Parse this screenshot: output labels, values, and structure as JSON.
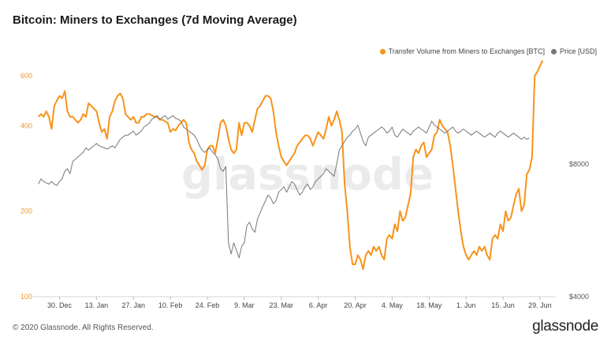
{
  "chart_data": {
    "type": "line",
    "title": "Bitcoin: Miners to Exchanges (7d Moving Average)",
    "watermark": "glassnode",
    "legend": [
      "Transfer Volume from Miners to Exchanges [BTC]",
      "Price [USD]"
    ],
    "x_tick_labels": [
      "30. Dec",
      "13. Jan",
      "27. Jan",
      "10. Feb",
      "24. Feb",
      "9. Mar",
      "23. Mar",
      "6. Apr",
      "20. Apr",
      "4. May",
      "18. May",
      "1. Jun",
      "15. Jun",
      "29. Jun"
    ],
    "x_range_days": [
      -10,
      188
    ],
    "x_tick_offsets_days": [
      0,
      14,
      28,
      42,
      56,
      70,
      84,
      98,
      112,
      126,
      140,
      154,
      168,
      182
    ],
    "left_axis": {
      "scale": "log",
      "range": [
        100,
        700
      ],
      "ticks": [
        100,
        200,
        400,
        600
      ],
      "tick_labels": [
        "100",
        "200",
        "400",
        "600"
      ]
    },
    "right_axis": {
      "scale": "log",
      "range": [
        4000,
        14000
      ],
      "ticks": [
        4000,
        8000
      ],
      "tick_labels": [
        "$4000",
        "$8000"
      ]
    },
    "series": [
      {
        "name": "Transfer Volume from Miners to Exchanges [BTC]",
        "axis": "left",
        "color": "#f7931a",
        "day_start": -8,
        "values": [
          430,
          440,
          430,
          450,
          430,
          390,
          470,
          490,
          510,
          500,
          530,
          450,
          430,
          430,
          420,
          410,
          420,
          440,
          430,
          480,
          470,
          460,
          450,
          410,
          380,
          390,
          360,
          430,
          450,
          490,
          510,
          520,
          500,
          440,
          430,
          420,
          430,
          410,
          410,
          430,
          430,
          440,
          440,
          435,
          430,
          430,
          420,
          420,
          415,
          410,
          380,
          390,
          385,
          400,
          410,
          420,
          410,
          350,
          330,
          320,
          300,
          290,
          280,
          290,
          330,
          340,
          340,
          320,
          360,
          410,
          420,
          400,
          360,
          330,
          320,
          330,
          410,
          370,
          410,
          410,
          400,
          380,
          420,
          460,
          470,
          490,
          510,
          510,
          500,
          450,
          380,
          340,
          310,
          300,
          290,
          300,
          310,
          320,
          340,
          350,
          360,
          370,
          370,
          360,
          340,
          360,
          380,
          370,
          360,
          390,
          430,
          400,
          420,
          450,
          420,
          380,
          250,
          200,
          150,
          130,
          130,
          140,
          135,
          125,
          140,
          145,
          140,
          150,
          145,
          150,
          140,
          135,
          160,
          165,
          160,
          180,
          170,
          200,
          185,
          190,
          210,
          230,
          310,
          330,
          320,
          340,
          350,
          310,
          320,
          330,
          370,
          380,
          420,
          400,
          390,
          380,
          340,
          290,
          240,
          200,
          170,
          150,
          140,
          135,
          140,
          145,
          140,
          150,
          145,
          150,
          140,
          135,
          160,
          165,
          160,
          180,
          170,
          200,
          185,
          190,
          210,
          230,
          240,
          200,
          210,
          270,
          280,
          310,
          600,
          620,
          650,
          680
        ],
        "note": "7d MA; values read approximately from chart"
      },
      {
        "name": "Price [USD]",
        "axis": "right",
        "color": "#777777",
        "day_start": -8,
        "values": [
          7200,
          7400,
          7300,
          7250,
          7200,
          7300,
          7200,
          7150,
          7300,
          7400,
          7700,
          7800,
          7600,
          8100,
          8200,
          8300,
          8400,
          8500,
          8700,
          8600,
          8700,
          8800,
          8900,
          8800,
          8750,
          8700,
          8650,
          8700,
          8800,
          8700,
          8900,
          9100,
          9200,
          9300,
          9300,
          9400,
          9500,
          9300,
          9400,
          9500,
          9700,
          9800,
          9900,
          10100,
          10200,
          10300,
          10100,
          10200,
          10300,
          10100,
          10200,
          10300,
          10150,
          10100,
          10000,
          9700,
          9600,
          9500,
          9400,
          9300,
          9100,
          8800,
          8600,
          8500,
          8600,
          8700,
          8500,
          8400,
          8200,
          7800,
          7700,
          7900,
          5300,
          5000,
          5300,
          5100,
          4900,
          5200,
          5300,
          5800,
          5900,
          5700,
          5600,
          6000,
          6200,
          6400,
          6600,
          6800,
          6700,
          6500,
          6600,
          6900,
          7000,
          7100,
          6900,
          7100,
          7300,
          7200,
          7000,
          6800,
          6900,
          7100,
          7200,
          7000,
          7100,
          7300,
          7400,
          7500,
          7600,
          7800,
          7700,
          7600,
          7500,
          8000,
          8600,
          8800,
          9000,
          9200,
          9300,
          9500,
          9600,
          9800,
          9400,
          9000,
          8800,
          9200,
          9300,
          9400,
          9500,
          9600,
          9700,
          9600,
          9400,
          9500,
          9700,
          9300,
          9200,
          9400,
          9600,
          9500,
          9400,
          9300,
          9500,
          9600,
          9700,
          9600,
          9500,
          9400,
          9700,
          10000,
          9800,
          9700,
          9600,
          9500,
          9400,
          9500,
          9600,
          9700,
          9500,
          9400,
          9500,
          9600,
          9500,
          9400,
          9300,
          9400,
          9500,
          9400,
          9300,
          9200,
          9300,
          9400,
          9300,
          9200,
          9400,
          9500,
          9400,
          9300,
          9200,
          9300,
          9400,
          9300,
          9200,
          9100,
          9200,
          9100,
          9150
        ],
        "note": "daily price; values read approximately from chart"
      }
    ]
  },
  "footer": {
    "copyright": "© 2020 Glassnode. All Rights Reserved.",
    "brand": "glassnode"
  }
}
